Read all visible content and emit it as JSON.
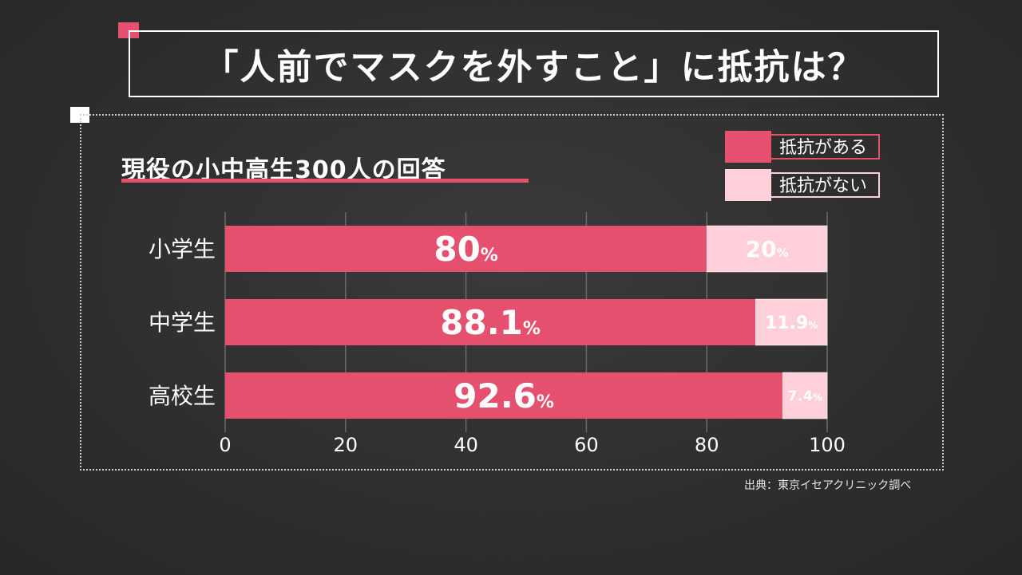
{
  "header": {
    "title": "「人前でマスクを外すこと」に抵抗は？"
  },
  "subtitle": "現役の小中高生300人の回答",
  "source": "出典：東京イセアクリニック調べ",
  "colors": {
    "resist": "#e5506e",
    "no_resist": "#ffd0da",
    "grid": "#6a6a6a"
  },
  "chart_data": {
    "type": "bar",
    "orientation": "horizontal",
    "stacked": true,
    "categories": [
      "小学生",
      "中学生",
      "高校生"
    ],
    "series": [
      {
        "name": "抵抗がある",
        "values": [
          80,
          88.1,
          92.6
        ],
        "labels": [
          "80",
          "88.1",
          "92.6"
        ]
      },
      {
        "name": "抵抗がない",
        "values": [
          20,
          11.9,
          7.4
        ],
        "labels": [
          "20",
          "11.9",
          "7.4"
        ]
      }
    ],
    "unit": "%",
    "xlim": [
      0,
      100
    ],
    "xticks": [
      "0",
      "20",
      "40",
      "60",
      "80",
      "100"
    ],
    "grid": true,
    "legend": "top-right"
  }
}
